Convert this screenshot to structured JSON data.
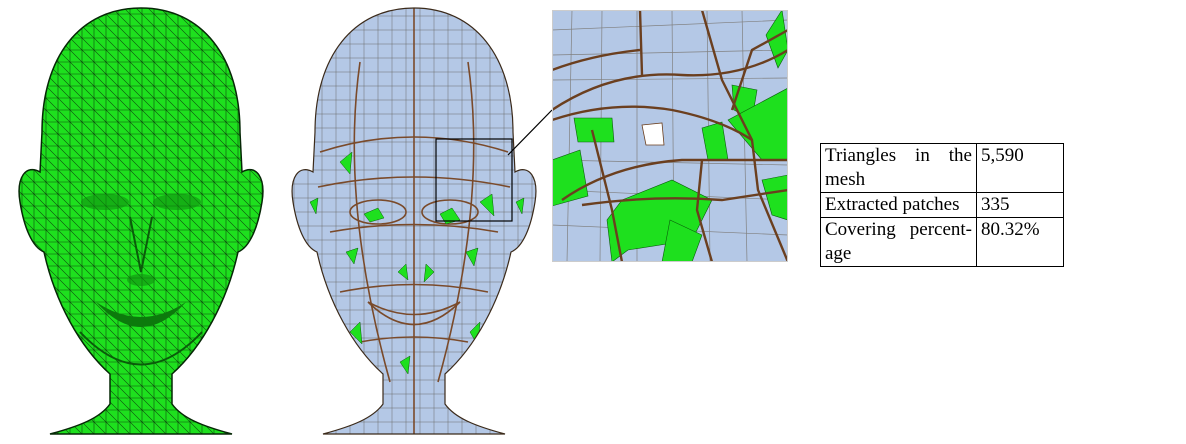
{
  "figure": {
    "panels": [
      {
        "name": "triangle-mesh-head",
        "fill": "#1ee01e",
        "line": "#0b3d0b"
      },
      {
        "name": "quad-patch-head",
        "fill": "#b4c8e6",
        "line": "#7a4a2a",
        "uncovered": "#1ee01e"
      },
      {
        "name": "zoomed-eye-region",
        "fill": "#b4c8e6",
        "line": "#6b3f1f",
        "uncovered": "#1ee01e"
      }
    ]
  },
  "table": {
    "rows": [
      {
        "label_words": [
          "Triangles",
          "in",
          "the"
        ],
        "label_rest": "mesh",
        "value": "5,590"
      },
      {
        "label": "Extracted patches",
        "value": "335"
      },
      {
        "label_words": [
          "Covering",
          "percent-"
        ],
        "label_rest": "age",
        "value": "80.32%"
      }
    ]
  }
}
